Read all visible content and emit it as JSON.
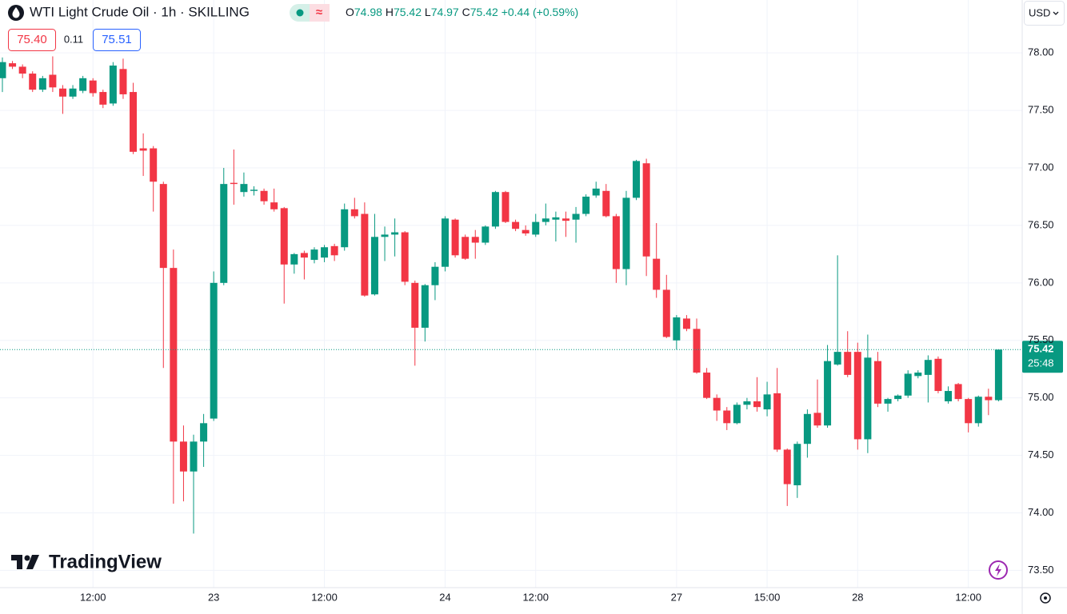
{
  "header": {
    "symbol": "WTI Light Crude Oil · 1h · SKILLING",
    "ohlc": [
      {
        "label": "O",
        "value": "74.98"
      },
      {
        "label": "H",
        "value": "75.42"
      },
      {
        "label": "L",
        "value": "74.97"
      },
      {
        "label": "C",
        "value": "75.42"
      }
    ],
    "change": "+0.44 (+0.59%)",
    "bid": "75.40",
    "spread": "0.11",
    "ask": "75.51",
    "currency": "USD",
    "logo": "TradingView"
  },
  "chart_data": {
    "type": "candlestick",
    "up_color": "#089981",
    "down_color": "#f23645",
    "grid": true,
    "categories": [
      null,
      null,
      null,
      null,
      null,
      null,
      null,
      null,
      null,
      "12:00",
      null,
      null,
      null,
      null,
      null,
      null,
      null,
      null,
      null,
      null,
      null,
      "23",
      null,
      null,
      null,
      null,
      null,
      null,
      null,
      null,
      null,
      null,
      "12:00",
      null,
      null,
      null,
      null,
      null,
      null,
      null,
      null,
      null,
      null,
      null,
      "24",
      null,
      null,
      null,
      null,
      null,
      null,
      null,
      null,
      "12:00",
      null,
      null,
      null,
      null,
      null,
      null,
      null,
      null,
      null,
      null,
      null,
      null,
      null,
      "27",
      null,
      null,
      null,
      null,
      null,
      null,
      null,
      null,
      "15:00",
      null,
      null,
      null,
      null,
      null,
      null,
      null,
      null,
      "28",
      null,
      null,
      null,
      null,
      null,
      null,
      null,
      null,
      null,
      null,
      "12:00",
      null,
      null,
      null
    ],
    "open": [
      77.78,
      77.91,
      77.88,
      77.82,
      77.68,
      77.81,
      77.69,
      77.62,
      77.67,
      77.76,
      77.66,
      77.56,
      77.86,
      77.66,
      77.17,
      77.17,
      76.86,
      76.13,
      74.62,
      74.36,
      74.62,
      74.82,
      76.0,
      76.87,
      76.79,
      76.8,
      76.8,
      76.7,
      76.65,
      76.16,
      76.26,
      76.2,
      76.22,
      76.32,
      76.31,
      76.64,
      76.6,
      75.9,
      76.4,
      76.42,
      76.44,
      76.0,
      75.61,
      75.98,
      76.14,
      76.55,
      76.4,
      76.4,
      76.35,
      76.49,
      76.79,
      76.53,
      76.46,
      76.42,
      76.53,
      76.55,
      76.56,
      76.55,
      76.6,
      76.76,
      76.8,
      76.58,
      76.12,
      76.74,
      77.04,
      76.21,
      75.94,
      75.5,
      75.69,
      75.6,
      75.22,
      75.0,
      74.89,
      74.78,
      74.94,
      74.97,
      74.9,
      75.04,
      74.55,
      74.24,
      74.6,
      74.87,
      74.76,
      75.29,
      75.4,
      75.4,
      74.64,
      75.32,
      74.95,
      74.99,
      75.02,
      75.19,
      75.2,
      75.34,
      74.97,
      75.12,
      74.99,
      74.78,
      75.01,
      74.98
    ],
    "high": [
      77.96,
      77.93,
      77.9,
      77.84,
      77.8,
      77.97,
      77.72,
      77.72,
      77.8,
      77.78,
      77.68,
      77.92,
      77.95,
      77.74,
      77.3,
      77.19,
      76.88,
      76.29,
      74.76,
      74.68,
      74.86,
      76.1,
      77.0,
      77.16,
      76.96,
      76.84,
      76.82,
      76.82,
      76.66,
      76.26,
      76.28,
      76.31,
      76.33,
      76.34,
      76.69,
      76.74,
      76.7,
      76.6,
      76.49,
      76.56,
      76.45,
      76.02,
      75.99,
      76.18,
      76.58,
      76.56,
      76.42,
      76.46,
      76.5,
      76.8,
      76.8,
      76.55,
      76.5,
      76.6,
      76.69,
      76.62,
      76.62,
      76.66,
      76.77,
      76.88,
      76.86,
      76.6,
      76.8,
      77.07,
      77.08,
      76.52,
      76.07,
      75.72,
      75.72,
      75.69,
      75.26,
      75.03,
      74.92,
      74.96,
      75.0,
      75.18,
      75.14,
      75.26,
      74.56,
      74.62,
      74.9,
      75.16,
      75.46,
      76.24,
      75.58,
      75.48,
      75.55,
      75.4,
      75.0,
      75.03,
      75.24,
      75.24,
      75.37,
      75.36,
      75.1,
      75.13,
      75.0,
      75.02,
      75.08,
      75.42
    ],
    "low": [
      77.66,
      77.86,
      77.78,
      77.66,
      77.66,
      77.66,
      77.47,
      77.6,
      77.65,
      77.62,
      77.52,
      77.54,
      77.6,
      77.12,
      76.93,
      76.62,
      75.26,
      74.08,
      74.1,
      73.82,
      74.4,
      74.8,
      75.98,
      76.68,
      76.75,
      76.76,
      76.68,
      76.62,
      75.82,
      76.08,
      76.03,
      76.17,
      76.18,
      76.19,
      76.28,
      76.56,
      75.88,
      75.89,
      76.19,
      76.23,
      75.98,
      75.28,
      75.49,
      75.85,
      76.1,
      76.22,
      76.2,
      76.21,
      76.33,
      76.47,
      76.52,
      76.45,
      76.41,
      76.4,
      76.5,
      76.36,
      76.4,
      76.35,
      76.58,
      76.74,
      76.57,
      76.0,
      75.98,
      76.72,
      76.06,
      75.87,
      75.52,
      75.42,
      75.58,
      75.21,
      74.99,
      74.8,
      74.72,
      74.77,
      74.9,
      74.88,
      74.84,
      74.53,
      74.06,
      74.13,
      74.48,
      74.74,
      74.74,
      75.28,
      75.18,
      74.55,
      74.52,
      74.92,
      74.88,
      74.97,
      75.0,
      75.17,
      74.96,
      75.04,
      74.95,
      74.97,
      74.7,
      74.75,
      74.85,
      74.97
    ],
    "close": [
      77.92,
      77.88,
      77.82,
      77.68,
      77.78,
      77.7,
      77.62,
      77.69,
      77.78,
      77.65,
      77.55,
      77.89,
      77.64,
      77.14,
      77.15,
      76.88,
      76.13,
      74.62,
      74.36,
      74.62,
      74.78,
      76.0,
      76.86,
      76.86,
      76.86,
      76.81,
      76.71,
      76.64,
      76.16,
      76.25,
      76.22,
      76.29,
      76.31,
      76.24,
      76.64,
      76.58,
      75.89,
      76.4,
      76.42,
      76.44,
      76.01,
      75.61,
      75.98,
      76.14,
      76.56,
      76.24,
      76.21,
      76.35,
      76.49,
      76.79,
      76.53,
      76.47,
      76.43,
      76.53,
      76.56,
      76.57,
      76.54,
      76.6,
      76.75,
      76.82,
      76.58,
      76.12,
      76.74,
      77.06,
      76.23,
      75.94,
      75.53,
      75.7,
      75.6,
      75.22,
      75.0,
      74.89,
      74.78,
      74.94,
      74.97,
      74.92,
      75.03,
      74.55,
      74.25,
      74.6,
      74.86,
      74.76,
      75.32,
      75.4,
      75.2,
      74.64,
      75.35,
      74.95,
      74.99,
      75.02,
      75.21,
      75.22,
      75.33,
      75.06,
      75.06,
      74.99,
      74.78,
      75.01,
      74.98,
      75.42
    ],
    "ylim": [
      73.35,
      78.46
    ],
    "yticks": [
      {
        "value": 78,
        "label": "78.00"
      },
      {
        "value": 77.5,
        "label": "77.50"
      },
      {
        "value": 77,
        "label": "77.00"
      },
      {
        "value": 76.5,
        "label": "76.50"
      },
      {
        "value": 76,
        "label": "76.00"
      },
      {
        "value": 75.5,
        "label": "75.50"
      },
      {
        "value": 75,
        "label": "75.00"
      },
      {
        "value": 74.5,
        "label": "74.50"
      },
      {
        "value": 74,
        "label": "74.00"
      },
      {
        "value": 73.5,
        "label": "73.50"
      }
    ],
    "last_price": {
      "value": 75.42,
      "label": "75.42"
    },
    "countdown": "25:48"
  }
}
